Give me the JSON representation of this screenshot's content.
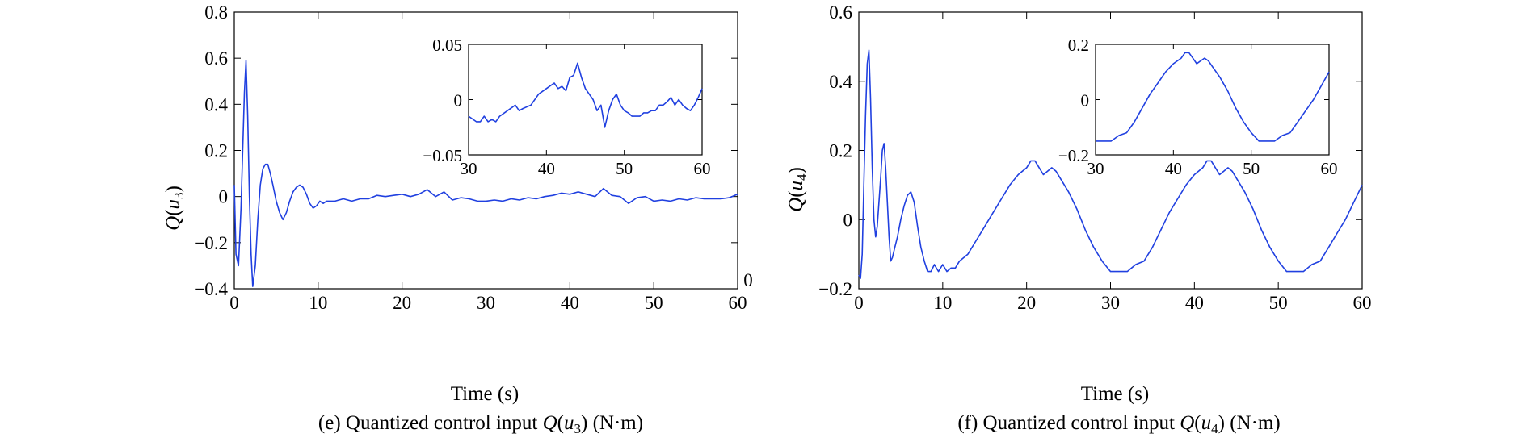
{
  "chart_data": [
    {
      "id": "e",
      "type": "line",
      "caption": {
        "pre": "(e) Quantized control input ",
        "q": "Q",
        "open": "(",
        "u": "u",
        "sub": "3",
        "close": ")",
        "unit": " (N·m)"
      },
      "xlabel": "Time (s)",
      "ylabel": {
        "q": "Q",
        "open": "(",
        "u": "u",
        "sub": "3",
        "close": ")"
      },
      "xlim": [
        0,
        60
      ],
      "ylim": [
        -0.4,
        0.8
      ],
      "xticks": [
        0,
        10,
        20,
        30,
        40,
        50,
        60
      ],
      "yticks": [
        -0.4,
        -0.2,
        0,
        0.2,
        0.4,
        0.6,
        0.8
      ],
      "ytick_labels": [
        "−0.4",
        "−0.2",
        "0",
        "0.2",
        "0.4",
        "0.6",
        "0.8"
      ],
      "stray_text": "0",
      "color": "#2040e0",
      "series": [
        {
          "x": [
            0,
            0.2,
            0.5,
            0.8,
            1.0,
            1.2,
            1.4,
            1.6,
            1.8,
            2.0,
            2.2,
            2.5,
            2.8,
            3.1,
            3.4,
            3.7,
            4.0,
            4.3,
            4.6,
            5.0,
            5.4,
            5.8,
            6.2,
            6.6,
            7.0,
            7.4,
            7.8,
            8.2,
            8.6,
            9.0,
            9.4,
            9.8,
            10.2,
            10.6,
            11,
            12,
            13,
            14,
            15,
            16,
            17,
            18,
            19,
            20,
            21,
            22,
            23,
            24,
            25,
            26,
            27,
            28,
            29,
            30,
            31,
            32,
            33,
            34,
            35,
            36,
            37,
            38,
            39,
            40,
            41,
            42,
            43,
            44,
            45,
            46,
            47,
            48,
            49,
            50,
            51,
            52,
            53,
            54,
            55,
            56,
            57,
            58,
            59,
            60
          ],
          "y": [
            0.05,
            -0.25,
            -0.3,
            -0.05,
            0.2,
            0.45,
            0.59,
            0.35,
            0.0,
            -0.25,
            -0.39,
            -0.3,
            -0.1,
            0.05,
            0.12,
            0.14,
            0.14,
            0.1,
            0.05,
            -0.02,
            -0.07,
            -0.1,
            -0.07,
            -0.02,
            0.02,
            0.04,
            0.05,
            0.04,
            0.01,
            -0.03,
            -0.05,
            -0.04,
            -0.02,
            -0.03,
            -0.02,
            -0.02,
            -0.01,
            -0.02,
            -0.01,
            -0.01,
            0.005,
            0.0,
            0.005,
            0.01,
            0.0,
            0.01,
            0.03,
            0.0,
            0.02,
            -0.015,
            -0.005,
            -0.01,
            -0.02,
            -0.02,
            -0.015,
            -0.02,
            -0.01,
            -0.015,
            -0.005,
            -0.01,
            0.0,
            0.005,
            0.015,
            0.01,
            0.02,
            0.01,
            0.0,
            0.035,
            0.005,
            0.0,
            -0.03,
            -0.005,
            0.0,
            -0.02,
            -0.015,
            -0.02,
            -0.01,
            -0.015,
            -0.005,
            -0.01,
            -0.01,
            -0.01,
            -0.005,
            0.01
          ]
        }
      ],
      "inset": {
        "xlim": [
          30,
          60
        ],
        "ylim": [
          -0.05,
          0.05
        ],
        "xticks": [
          30,
          40,
          50,
          60
        ],
        "yticks": [
          -0.05,
          0,
          0.05
        ],
        "ytick_labels": [
          "−0.05",
          "0",
          "0.05"
        ],
        "x": [
          30,
          31,
          31.5,
          32,
          32.5,
          33,
          33.5,
          34,
          35,
          36,
          36.5,
          37,
          38,
          39,
          40,
          41,
          41.5,
          42,
          42.5,
          43,
          43.5,
          44,
          44.5,
          45,
          45.5,
          46,
          46.5,
          47,
          47.5,
          48,
          48.5,
          49,
          49.5,
          50,
          50.5,
          51,
          51.5,
          52,
          52.5,
          53,
          53.5,
          54,
          54.5,
          55,
          55.5,
          56,
          56.5,
          57,
          57.5,
          58,
          58.5,
          59,
          59.5,
          60
        ],
        "y": [
          -0.015,
          -0.02,
          -0.02,
          -0.015,
          -0.02,
          -0.018,
          -0.02,
          -0.015,
          -0.01,
          -0.005,
          -0.01,
          -0.008,
          -0.005,
          0.005,
          0.01,
          0.015,
          0.01,
          0.012,
          0.008,
          0.02,
          0.022,
          0.033,
          0.02,
          0.01,
          0.005,
          0.0,
          -0.01,
          -0.005,
          -0.025,
          -0.01,
          0.0,
          0.005,
          -0.005,
          -0.01,
          -0.012,
          -0.015,
          -0.015,
          -0.015,
          -0.012,
          -0.012,
          -0.01,
          -0.01,
          -0.005,
          -0.005,
          -0.002,
          0.002,
          -0.005,
          0.0,
          -0.005,
          -0.008,
          -0.01,
          -0.005,
          0.002,
          0.01
        ]
      }
    },
    {
      "id": "f",
      "type": "line",
      "caption": {
        "pre": "(f) Quantized control input ",
        "q": "Q",
        "open": "(",
        "u": "u",
        "sub": "4",
        "close": ")",
        "unit": " (N·m)"
      },
      "xlabel": "Time (s)",
      "ylabel": {
        "q": "Q",
        "open": "(",
        "u": "u",
        "sub": "4",
        "close": ")"
      },
      "xlim": [
        0,
        60
      ],
      "ylim": [
        -0.2,
        0.6
      ],
      "xticks": [
        0,
        10,
        20,
        30,
        40,
        50,
        60
      ],
      "yticks": [
        -0.2,
        0,
        0.2,
        0.4,
        0.6
      ],
      "ytick_labels": [
        "−0.2",
        "0",
        "0.2",
        "0.4",
        "0.6"
      ],
      "color": "#2040e0",
      "series": [
        {
          "x": [
            0,
            0.2,
            0.4,
            0.6,
            0.8,
            1.0,
            1.2,
            1.4,
            1.6,
            1.8,
            2.0,
            2.2,
            2.4,
            2.6,
            2.8,
            3.0,
            3.2,
            3.4,
            3.6,
            3.8,
            4.0,
            4.3,
            4.6,
            5.0,
            5.4,
            5.8,
            6.2,
            6.6,
            7.0,
            7.4,
            7.8,
            8.2,
            8.6,
            9.0,
            9.5,
            10,
            10.5,
            11,
            11.5,
            12,
            13,
            14,
            15,
            16,
            17,
            18,
            19,
            20,
            20.5,
            21,
            21.5,
            22,
            22.5,
            23,
            23.5,
            24,
            25,
            26,
            27,
            28,
            29,
            30,
            31,
            32,
            33,
            34,
            35,
            36,
            37,
            38,
            39,
            40,
            41,
            41.5,
            42,
            42.5,
            43,
            43.5,
            44,
            44.5,
            45,
            46,
            47,
            48,
            49,
            50,
            51,
            52,
            53,
            54,
            55,
            56,
            57,
            58,
            59,
            60
          ],
          "y": [
            -0.16,
            -0.17,
            -0.1,
            0.1,
            0.3,
            0.45,
            0.49,
            0.35,
            0.15,
            0.0,
            -0.05,
            -0.02,
            0.05,
            0.12,
            0.2,
            0.22,
            0.15,
            0.05,
            -0.05,
            -0.12,
            -0.11,
            -0.08,
            -0.05,
            0.0,
            0.04,
            0.07,
            0.08,
            0.05,
            -0.02,
            -0.08,
            -0.12,
            -0.15,
            -0.15,
            -0.13,
            -0.15,
            -0.13,
            -0.15,
            -0.14,
            -0.14,
            -0.12,
            -0.1,
            -0.06,
            -0.02,
            0.02,
            0.06,
            0.1,
            0.13,
            0.15,
            0.17,
            0.17,
            0.15,
            0.13,
            0.14,
            0.15,
            0.14,
            0.12,
            0.08,
            0.03,
            -0.03,
            -0.08,
            -0.12,
            -0.15,
            -0.15,
            -0.15,
            -0.13,
            -0.12,
            -0.08,
            -0.03,
            0.02,
            0.06,
            0.1,
            0.13,
            0.15,
            0.17,
            0.17,
            0.15,
            0.13,
            0.14,
            0.15,
            0.14,
            0.12,
            0.08,
            0.03,
            -0.03,
            -0.08,
            -0.12,
            -0.15,
            -0.15,
            -0.15,
            -0.13,
            -0.12,
            -0.08,
            -0.04,
            0.0,
            0.05,
            0.1
          ]
        }
      ],
      "inset": {
        "xlim": [
          30,
          60
        ],
        "ylim": [
          -0.2,
          0.2
        ],
        "xticks": [
          30,
          40,
          50,
          60
        ],
        "yticks": [
          -0.2,
          0,
          0.2
        ],
        "ytick_labels": [
          "−0.2",
          "0",
          "0.2"
        ],
        "x": [
          30,
          31,
          32,
          33,
          34,
          35,
          36,
          37,
          38,
          39,
          40,
          41,
          41.5,
          42,
          42.5,
          43,
          43.5,
          44,
          44.5,
          45,
          46,
          47,
          48,
          49,
          50,
          51,
          52,
          53,
          54,
          55,
          56,
          57,
          58,
          59,
          60
        ],
        "y": [
          -0.15,
          -0.15,
          -0.15,
          -0.13,
          -0.12,
          -0.08,
          -0.03,
          0.02,
          0.06,
          0.1,
          0.13,
          0.15,
          0.17,
          0.17,
          0.15,
          0.13,
          0.14,
          0.15,
          0.14,
          0.12,
          0.08,
          0.03,
          -0.03,
          -0.08,
          -0.12,
          -0.15,
          -0.15,
          -0.15,
          -0.13,
          -0.12,
          -0.08,
          -0.04,
          0.0,
          0.05,
          0.1
        ]
      }
    }
  ]
}
